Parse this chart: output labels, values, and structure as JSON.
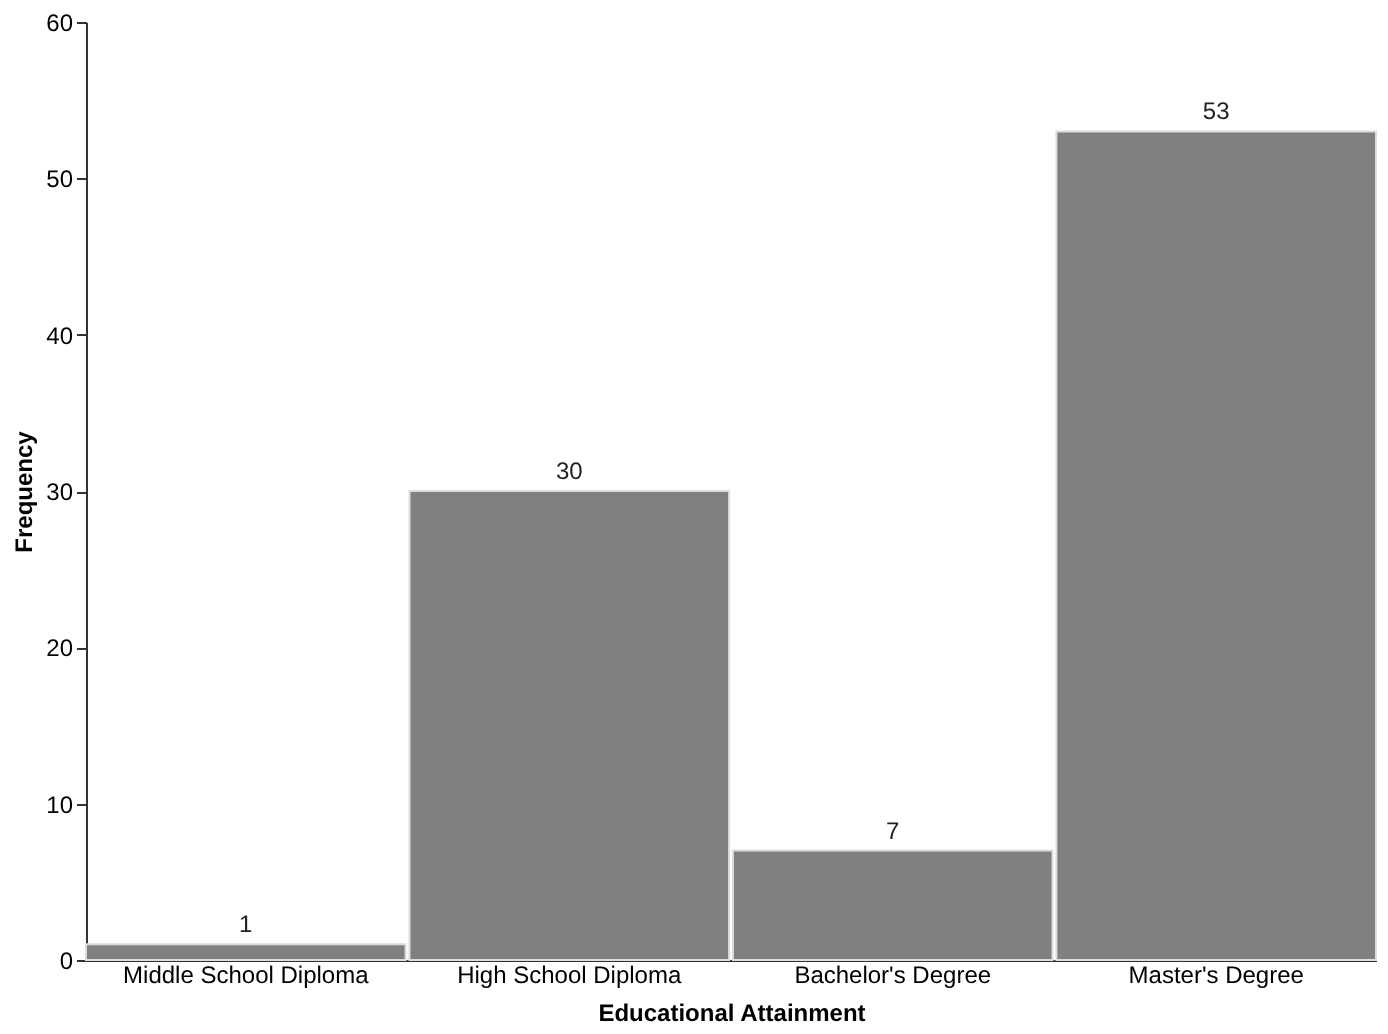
{
  "chart_data": {
    "type": "bar",
    "xlabel": "Educational Attainment",
    "ylabel": "Frequency",
    "categories": [
      "Middle School Diploma",
      "High School Diploma",
      "Bachelor's Degree",
      "Master's Degree"
    ],
    "values": [
      1,
      30,
      7,
      53
    ],
    "color": "#808080",
    "ylim": [
      0,
      60
    ],
    "yticks": [
      0,
      10,
      20,
      30,
      40,
      50,
      60
    ],
    "grid": false,
    "data_labels": true
  }
}
